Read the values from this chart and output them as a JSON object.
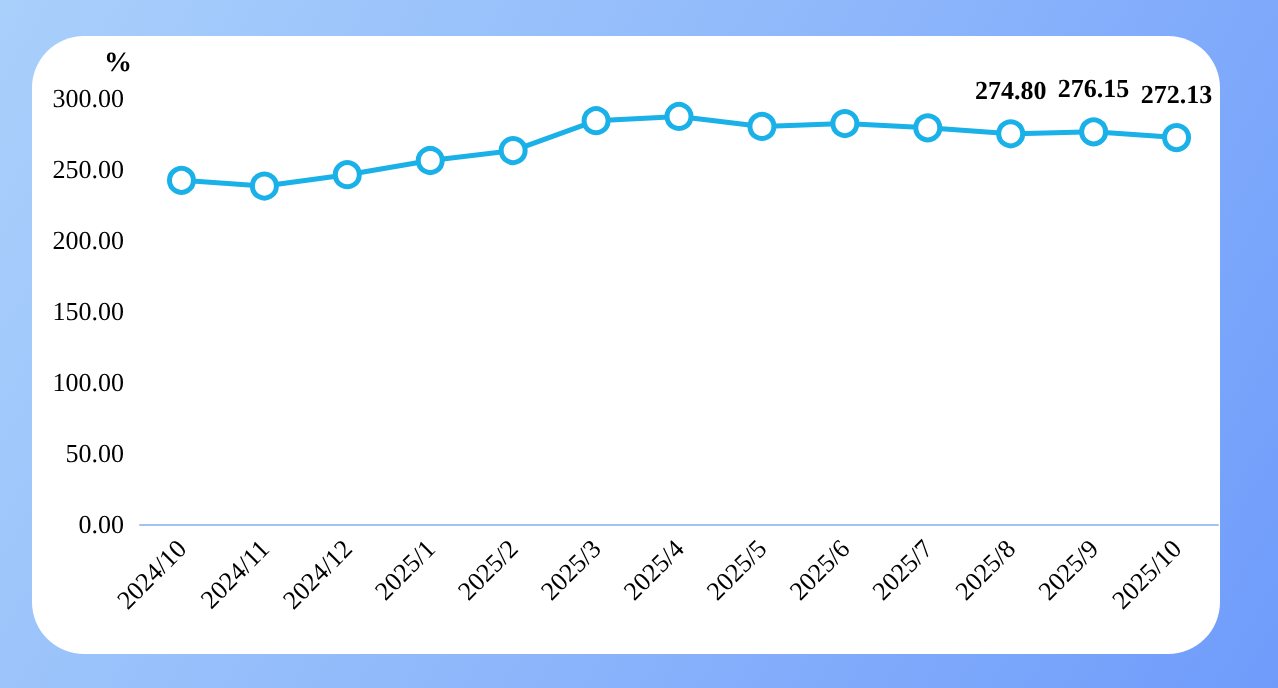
{
  "chart_data": {
    "type": "line",
    "ylabel": "%",
    "categories": [
      "2024/10",
      "2024/11",
      "2024/12",
      "2025/1",
      "2025/2",
      "2025/3",
      "2025/4",
      "2025/5",
      "2025/6",
      "2025/7",
      "2025/8",
      "2025/9",
      "2025/10"
    ],
    "series": [
      {
        "color": "#1ab0e8",
        "values": [
          242,
          238,
          246,
          256,
          263,
          284,
          287,
          280,
          282,
          279,
          274.8,
          276.15,
          272.13
        ],
        "value_labels": [
          null,
          null,
          null,
          null,
          null,
          null,
          null,
          null,
          null,
          null,
          "274.80",
          "276.15",
          "272.13"
        ]
      }
    ],
    "ylim": [
      0,
      300
    ],
    "yticks": [
      {
        "value": 0,
        "label": "0.00"
      },
      {
        "value": 50,
        "label": "50.00"
      },
      {
        "value": 100,
        "label": "100.00"
      },
      {
        "value": 150,
        "label": "150.00"
      },
      {
        "value": 200,
        "label": "200.00"
      },
      {
        "value": 250,
        "label": "250.00"
      },
      {
        "value": 300,
        "label": "300.00"
      }
    ],
    "grid": false,
    "marker": "circle",
    "line_style": "solid"
  }
}
